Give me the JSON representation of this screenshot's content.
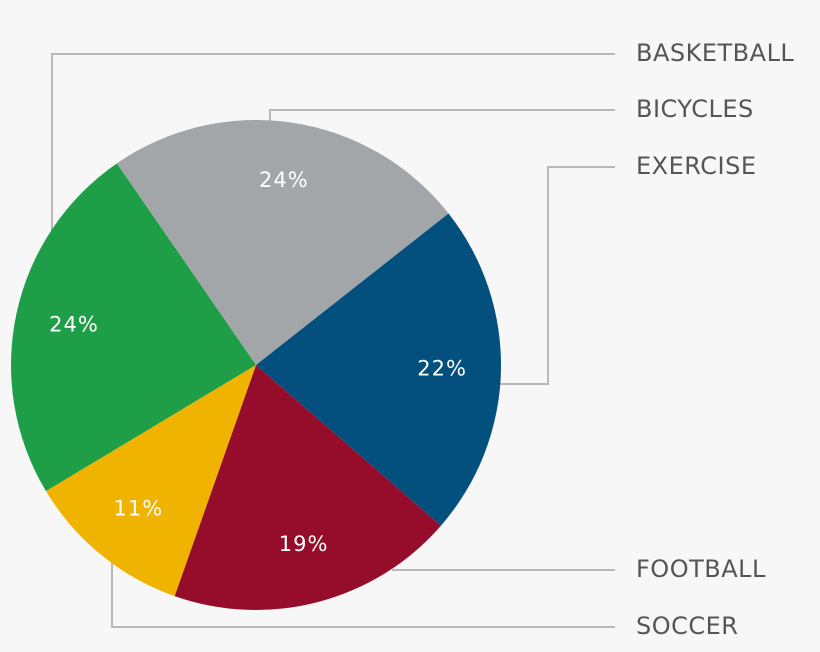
{
  "chart_data": {
    "type": "pie",
    "categories": [
      "BASKETBALL",
      "BICYCLES",
      "EXERCISE",
      "FOOTBALL",
      "SOCCER"
    ],
    "values": [
      24,
      24,
      22,
      19,
      11
    ],
    "value_labels": [
      "24%",
      "24%",
      "22%",
      "19%",
      "11%"
    ],
    "colors": [
      "#1f9e48",
      "#a3a6a9",
      "#03507e",
      "#960d2b",
      "#f0b300"
    ]
  }
}
